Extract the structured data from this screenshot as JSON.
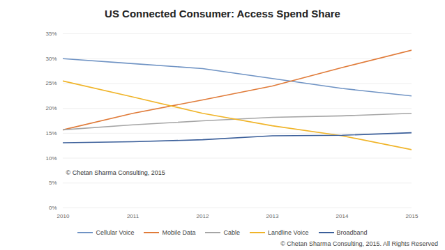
{
  "chart_data": {
    "type": "line",
    "title": "US Connected Consumer: Access Spend Share",
    "x": [
      2010,
      2011,
      2012,
      2013,
      2014,
      2015
    ],
    "xlim": [
      2010,
      2015
    ],
    "xticks": [
      2010,
      2011,
      2012,
      2013,
      2014,
      2015
    ],
    "ylim": [
      0,
      35
    ],
    "yticks": [
      {
        "value": 0,
        "label": "0%"
      },
      {
        "value": 5,
        "label": "5%"
      },
      {
        "value": 10,
        "label": "10%"
      },
      {
        "value": 15,
        "label": "15%"
      },
      {
        "value": 20,
        "label": "20%"
      },
      {
        "value": 25,
        "label": "25%"
      },
      {
        "value": 30,
        "label": "30%"
      },
      {
        "value": 35,
        "label": "35%"
      }
    ],
    "grid": true,
    "legend": "bottom",
    "annotations": [
      "© Chetan Sharma Consulting, 2015"
    ],
    "footer": "© Chetan Sharma Consulting, 2015. All Rights Reserved",
    "series": [
      {
        "name": "Cellular Voice",
        "color": "#6f93c4",
        "values": [
          30,
          29,
          28,
          26,
          24,
          22.5
        ]
      },
      {
        "name": "Mobile Data",
        "color": "#e07b39",
        "values": [
          15.7,
          19,
          21.7,
          24.5,
          28.2,
          31.7
        ]
      },
      {
        "name": "Cable",
        "color": "#a5a5a5",
        "values": [
          15.7,
          16.7,
          17.5,
          18.2,
          18.5,
          19
        ]
      },
      {
        "name": "Landline Voice",
        "color": "#f0b428",
        "values": [
          25.5,
          22.3,
          19,
          16.5,
          14.5,
          11.7
        ]
      },
      {
        "name": "Broadband",
        "color": "#3b5f9a",
        "values": [
          13.1,
          13.3,
          13.7,
          14.5,
          14.6,
          15.1
        ]
      }
    ]
  }
}
